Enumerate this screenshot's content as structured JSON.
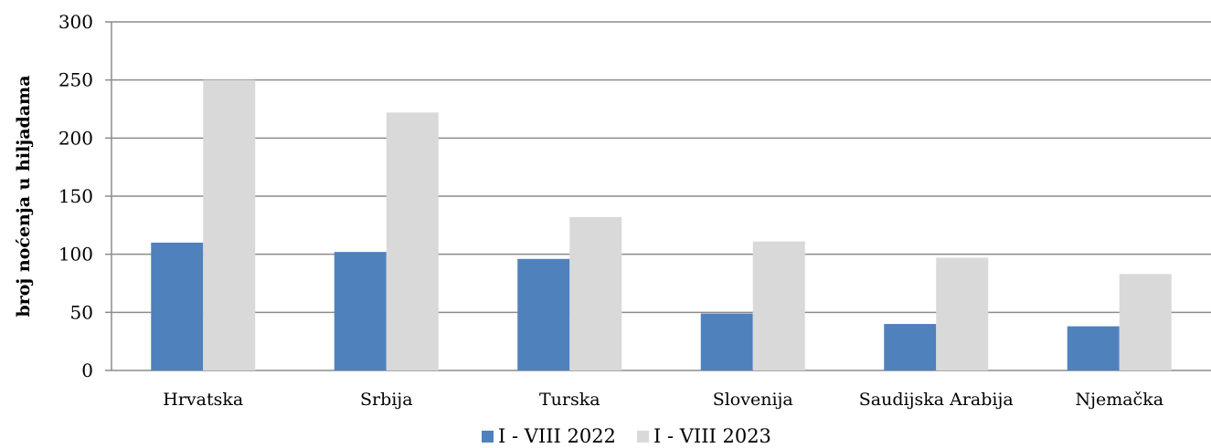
{
  "chart_data": {
    "type": "bar",
    "categories": [
      "Hrvatska",
      "Srbija",
      "Turska",
      "Slovenija",
      "Saudijska Arabija",
      "Njemačka"
    ],
    "series": [
      {
        "name": "I - VIII 2022",
        "color": "#4f81bd",
        "values": [
          110,
          102,
          96,
          49,
          40,
          38
        ]
      },
      {
        "name": "I - VIII 2023",
        "color": "#d9d9d9",
        "values": [
          250,
          222,
          132,
          111,
          97,
          83
        ]
      }
    ],
    "ylabel": "broj noćenja u hiljadama",
    "ylim": [
      0,
      300
    ],
    "yticks": [
      0,
      50,
      100,
      150,
      200,
      250,
      300
    ],
    "grid": true,
    "legend_position": "bottom"
  }
}
